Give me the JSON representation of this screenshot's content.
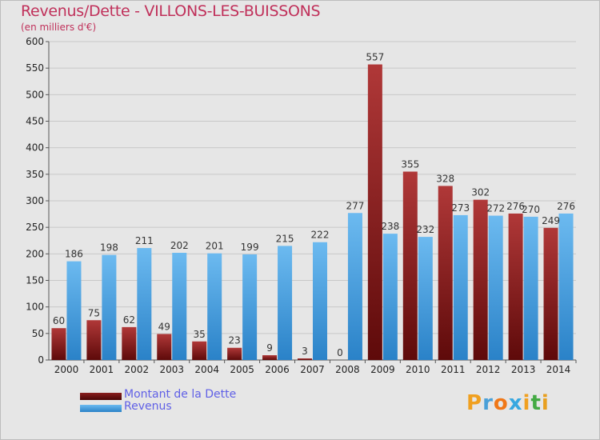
{
  "title": "Revenus/Dette - VILLONS-LES-BUISSONS",
  "subtitle": "(en milliers d'€)",
  "logo": "Proxiti",
  "colors": {
    "dette_dark": "#5e0a0a",
    "dette_light": "#b03838",
    "revenus_dark": "#1f78c0",
    "revenus_light": "#66b6ee",
    "title": "#c0305a",
    "legend_text": "#6060e6"
  },
  "chart_data": {
    "type": "bar",
    "title": "Revenus/Dette - VILLONS-LES-BUISSONS",
    "subtitle": "(en milliers d'€)",
    "xlabel": "",
    "ylabel": "",
    "ylim": [
      0,
      600
    ],
    "yticks": [
      0,
      50,
      100,
      150,
      200,
      250,
      300,
      350,
      400,
      450,
      500,
      550,
      600
    ],
    "grid": true,
    "legend_position": "bottom-left",
    "categories": [
      "2000",
      "2001",
      "2002",
      "2003",
      "2004",
      "2005",
      "2006",
      "2007",
      "2008",
      "2009",
      "2010",
      "2011",
      "2012",
      "2013",
      "2014"
    ],
    "series": [
      {
        "name": "Montant de la Dette",
        "values": [
          60,
          75,
          62,
          49,
          35,
          23,
          9,
          3,
          0,
          557,
          355,
          328,
          302,
          276,
          249
        ]
      },
      {
        "name": "Revenus",
        "values": [
          186,
          198,
          211,
          202,
          201,
          199,
          215,
          222,
          277,
          238,
          232,
          273,
          272,
          270,
          276
        ]
      }
    ]
  }
}
